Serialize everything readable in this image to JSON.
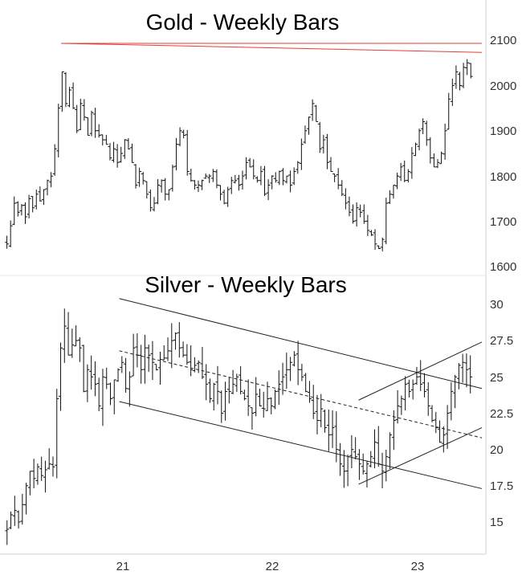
{
  "chart_data": [
    {
      "type": "ohlc",
      "title": "Gold - Weekly Bars",
      "x_ticks": [
        "21",
        "22",
        "23"
      ],
      "y_ticks": [
        "2100",
        "2000",
        "1900",
        "1800",
        "1700",
        "1600"
      ],
      "ylim": [
        1570,
        2140
      ],
      "xlim": [
        2020.15,
        2023.45
      ],
      "annotations": [
        {
          "kind": "resistance-line",
          "color": "#e0403a",
          "from": [
            2020.55,
            2093
          ],
          "to": [
            2023.45,
            2073
          ]
        },
        {
          "kind": "resistance-line",
          "color": "#e0403a",
          "from": [
            2020.55,
            2093
          ],
          "to": [
            2023.45,
            2093
          ]
        }
      ],
      "series": [
        {
          "closes": [
            1650,
            1690,
            1740,
            1720,
            1735,
            1710,
            1750,
            1730,
            1760,
            1745,
            1770,
            1790,
            1800,
            1860,
            1950,
            2030,
            1960,
            1990,
            1950,
            1900,
            1960,
            1930,
            1890,
            1940,
            1900,
            1890,
            1880,
            1870,
            1840,
            1860,
            1830,
            1850,
            1880,
            1860,
            1830,
            1780,
            1810,
            1790,
            1760,
            1730,
            1740,
            1780,
            1790,
            1760,
            1770,
            1820,
            1870,
            1900,
            1890,
            1810,
            1790,
            1780,
            1780,
            1790,
            1800,
            1800,
            1810,
            1780,
            1760,
            1740,
            1770,
            1790,
            1790,
            1780,
            1800,
            1830,
            1820,
            1800,
            1790,
            1810,
            1760,
            1780,
            1800,
            1790,
            1810,
            1790,
            1800,
            1780,
            1810,
            1830,
            1870,
            1900,
            1930,
            1960,
            1920,
            1860,
            1880,
            1830,
            1810,
            1800,
            1780,
            1760,
            1740,
            1720,
            1700,
            1730,
            1720,
            1700,
            1680,
            1670,
            1650,
            1640,
            1660,
            1740,
            1760,
            1780,
            1800,
            1820,
            1790,
            1810,
            1850,
            1870,
            1900,
            1920,
            1880,
            1840,
            1820,
            1830,
            1850,
            1900,
            1970,
            2000,
            2030,
            2000,
            2040,
            2050,
            2020
          ]
        }
      ]
    },
    {
      "type": "ohlc",
      "title": "Silver - Weekly Bars",
      "x_ticks": [
        "21",
        "22",
        "23"
      ],
      "y_ticks": [
        "30",
        "27.5",
        "25",
        "22.5",
        "20",
        "17.5",
        "15"
      ],
      "ylim": [
        13.5,
        31
      ],
      "xlim": [
        2020.15,
        2023.45
      ],
      "annotations": [
        {
          "kind": "channel-line",
          "style": "solid",
          "from": [
            2020.95,
            30.4
          ],
          "to": [
            2023.45,
            24.2
          ]
        },
        {
          "kind": "channel-line",
          "style": "dashed",
          "from": [
            2020.95,
            26.8
          ],
          "to": [
            2023.45,
            20.8
          ]
        },
        {
          "kind": "channel-line",
          "style": "solid",
          "from": [
            2020.95,
            23.3
          ],
          "to": [
            2023.45,
            17.3
          ]
        },
        {
          "kind": "channel-line",
          "style": "solid",
          "from": [
            2022.6,
            17.6
          ],
          "to": [
            2023.45,
            21.5
          ]
        },
        {
          "kind": "channel-line",
          "style": "solid",
          "from": [
            2022.6,
            23.4
          ],
          "to": [
            2023.45,
            27.4
          ]
        }
      ],
      "series": [
        {
          "closes": [
            14.5,
            15.5,
            15.8,
            15,
            16.2,
            17.5,
            18.5,
            18,
            18.8,
            18.2,
            18.6,
            19,
            18.8,
            23.5,
            27,
            28.5,
            26.5,
            27.2,
            27.5,
            27,
            24,
            25.5,
            25,
            24.5,
            23,
            25,
            24.5,
            23.5,
            24.8,
            25.5,
            26,
            24.2,
            25,
            27,
            26.5,
            25.5,
            27,
            26.5,
            26,
            25.5,
            26.2,
            26.3,
            26.8,
            27.5,
            28,
            27,
            26.5,
            26,
            25.5,
            25.8,
            26,
            25,
            24.5,
            23.5,
            24.5,
            24,
            22.5,
            24,
            24,
            24.5,
            25,
            24,
            23.5,
            23,
            22.5,
            23.8,
            23,
            22.8,
            23.5,
            23,
            24,
            24.5,
            25,
            25.5,
            26,
            26.5,
            25.5,
            25,
            24,
            23.5,
            22.5,
            22,
            22.8,
            21.5,
            21,
            21.5,
            20,
            19,
            18.5,
            19.5,
            20,
            19.5,
            19,
            18.5,
            19,
            19.5,
            20.5,
            19,
            18.5,
            19.5,
            21,
            22,
            23,
            23.5,
            24.5,
            24,
            24.5,
            25,
            24.5,
            24,
            23,
            22,
            21.5,
            20.5,
            21,
            22.5,
            24,
            25,
            25.8,
            26,
            25.5,
            25
          ]
        }
      ]
    }
  ]
}
